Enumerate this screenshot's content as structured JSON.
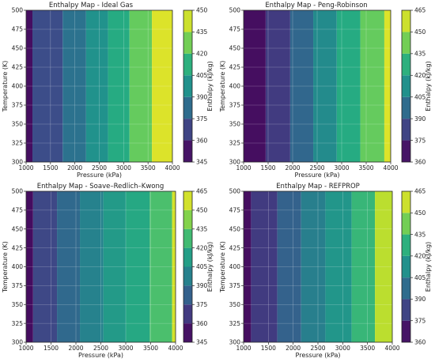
{
  "chart_data": [
    {
      "type": "heatmap",
      "title": "Enthalpy Map - Ideal Gas",
      "xlabel": "Pressure (kPa)",
      "ylabel": "Temperature (K)",
      "xlim": [
        1000,
        4000
      ],
      "ylim": [
        300,
        500
      ],
      "x_ticks": [
        1000,
        1500,
        2000,
        2500,
        3000,
        3500,
        4000
      ],
      "y_ticks": [
        300,
        325,
        350,
        375,
        400,
        425,
        450,
        475,
        500
      ],
      "colorbar": {
        "label": "Enthalpy (kJ/kg)",
        "ticks": [
          345,
          360,
          375,
          390,
          405,
          420,
          435,
          450
        ],
        "range": [
          345,
          450
        ]
      },
      "bands": [
        {
          "x_from": 1000,
          "x_to": 1130,
          "value": 350
        },
        {
          "x_from": 1130,
          "x_to": 1750,
          "value": 370
        },
        {
          "x_from": 1750,
          "x_to": 2230,
          "value": 385
        },
        {
          "x_from": 2230,
          "x_to": 2680,
          "value": 398
        },
        {
          "x_from": 2680,
          "x_to": 3120,
          "value": 410
        },
        {
          "x_from": 3120,
          "x_to": 3580,
          "value": 425
        },
        {
          "x_from": 3580,
          "x_to": 4000,
          "value": 445
        }
      ]
    },
    {
      "type": "heatmap",
      "title": "Enthalpy Map - Peng-Robinson",
      "xlabel": "Pressure (kPa)",
      "ylabel": "Temperature (K)",
      "xlim": [
        1000,
        4000
      ],
      "ylim": [
        300,
        500
      ],
      "x_ticks": [
        1000,
        1500,
        2000,
        2500,
        3000,
        3500,
        4000
      ],
      "y_ticks": [
        300,
        325,
        350,
        375,
        400,
        425,
        450,
        475,
        500
      ],
      "colorbar": {
        "label": "Enthalpy (kJ/kg)",
        "ticks": [
          360,
          375,
          390,
          405,
          420,
          435,
          450,
          465
        ],
        "range": [
          360,
          465
        ]
      },
      "bands": [
        {
          "x_from": 1000,
          "x_to": 1450,
          "value": 365
        },
        {
          "x_from": 1450,
          "x_to": 1950,
          "value": 380
        },
        {
          "x_from": 1950,
          "x_to": 2420,
          "value": 395
        },
        {
          "x_from": 2420,
          "x_to": 2900,
          "value": 410
        },
        {
          "x_from": 2900,
          "x_to": 3380,
          "value": 425
        },
        {
          "x_from": 3380,
          "x_to": 3870,
          "value": 440
        },
        {
          "x_from": 3870,
          "x_to": 4000,
          "value": 460
        }
      ]
    },
    {
      "type": "heatmap",
      "title": "Enthalpy Map - Soave–Redlich–Kwong",
      "xlabel": "Pressure (kPa)",
      "ylabel": "Temperature (K)",
      "xlim": [
        1000,
        4000
      ],
      "ylim": [
        300,
        500
      ],
      "x_ticks": [
        1000,
        1500,
        2000,
        2500,
        3000,
        3500,
        4000
      ],
      "y_ticks": [
        300,
        325,
        350,
        375,
        400,
        425,
        450,
        475,
        500
      ],
      "colorbar": {
        "label": "Enthalpy (kJ/kg)",
        "ticks": [
          345,
          360,
          375,
          390,
          405,
          420,
          435,
          450,
          465
        ],
        "range": [
          345,
          465
        ]
      },
      "bands": [
        {
          "x_from": 1000,
          "x_to": 1140,
          "value": 350
        },
        {
          "x_from": 1140,
          "x_to": 1620,
          "value": 372
        },
        {
          "x_from": 1620,
          "x_to": 2080,
          "value": 386
        },
        {
          "x_from": 2080,
          "x_to": 2550,
          "value": 398
        },
        {
          "x_from": 2550,
          "x_to": 3000,
          "value": 410
        },
        {
          "x_from": 3000,
          "x_to": 3480,
          "value": 418
        },
        {
          "x_from": 3480,
          "x_to": 3930,
          "value": 430
        },
        {
          "x_from": 3930,
          "x_to": 4000,
          "value": 458
        }
      ]
    },
    {
      "type": "heatmap",
      "title": "Enthalpy Map - REFPROP",
      "xlabel": "Pressure (kPa)",
      "ylabel": "Temperature (K)",
      "xlim": [
        1000,
        4000
      ],
      "ylim": [
        300,
        500
      ],
      "x_ticks": [
        1000,
        1500,
        2000,
        2500,
        3000,
        3500,
        4000
      ],
      "y_ticks": [
        300,
        325,
        350,
        375,
        400,
        425,
        450,
        475,
        500
      ],
      "colorbar": {
        "label": "Enthalpy (kJ/kg)",
        "ticks": [
          360,
          375,
          390,
          405,
          420,
          435,
          450,
          465
        ],
        "range": [
          360,
          465
        ]
      },
      "bands": [
        {
          "x_from": 1000,
          "x_to": 1150,
          "value": 365
        },
        {
          "x_from": 1150,
          "x_to": 1680,
          "value": 380
        },
        {
          "x_from": 1680,
          "x_to": 2160,
          "value": 393
        },
        {
          "x_from": 2160,
          "x_to": 2650,
          "value": 405
        },
        {
          "x_from": 2650,
          "x_to": 3180,
          "value": 415
        },
        {
          "x_from": 3180,
          "x_to": 3650,
          "value": 430
        },
        {
          "x_from": 3650,
          "x_to": 4000,
          "value": 455
        }
      ]
    }
  ]
}
